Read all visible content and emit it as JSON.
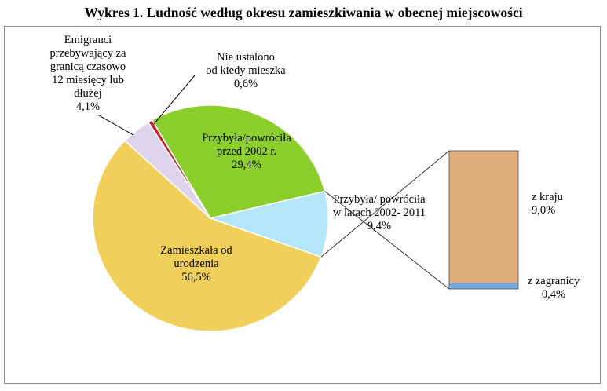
{
  "chart_data": {
    "type": "pie",
    "title": "Wykres 1. Ludność według okresu zamieszkiwania w obecnej miejscowości",
    "slices": [
      {
        "label_lines": [
          "Zamieszkała od",
          "urodzenia"
        ],
        "value_label": "56,5%",
        "value": 56.5,
        "color": "#f0cf5a"
      },
      {
        "label_lines": [
          "Emigranci",
          "przebywający za",
          "granicą czasowo",
          "12 miesięcy lub",
          "dłużej"
        ],
        "value_label": "4,1%",
        "value": 4.1,
        "color": "#ddd3ea"
      },
      {
        "label_lines": [
          "Nie ustalono",
          "od kiedy mieszka"
        ],
        "value_label": "0,6%",
        "value": 0.6,
        "color": "#c0272d"
      },
      {
        "label_lines": [
          "Przybyła/powróciła",
          "przed 2002 r."
        ],
        "value_label": "29,4%",
        "value": 29.4,
        "color": "#8ccf2c"
      },
      {
        "label_lines": [
          "Przybyła/ powróciła",
          "w latach 2002- 2011"
        ],
        "value_label": "9,4%",
        "value": 9.4,
        "color": "#b3e6f8"
      }
    ],
    "breakdown": {
      "of_slice": "Przybyła/ powróciła w latach 2002- 2011",
      "parts": [
        {
          "label": "z kraju",
          "value_label": "9,0%",
          "value": 9.0,
          "color": "#deaf7d"
        },
        {
          "label": "z zagranicy",
          "value_label": "0,4%",
          "value": 0.4,
          "color": "#6fa8dc"
        }
      ]
    }
  }
}
